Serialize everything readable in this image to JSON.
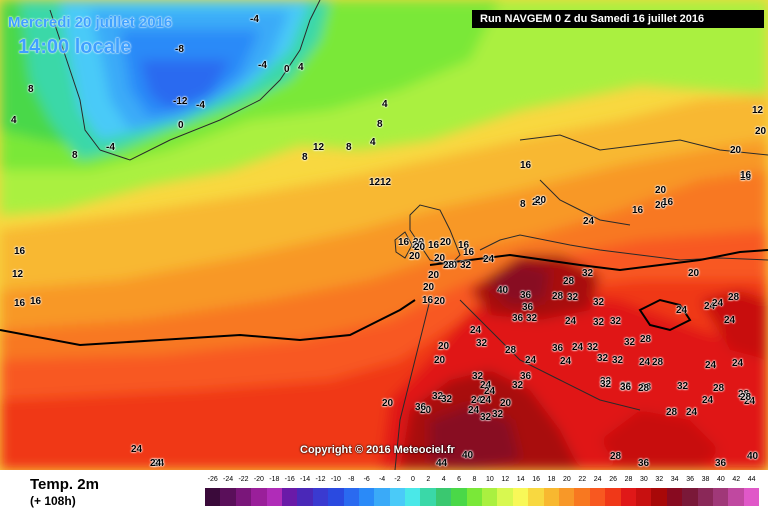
{
  "header": {
    "date_label": "Mercredi 20 juillet 2016",
    "time_label": "14:00 locale",
    "run_label": "Run NAVGEM 0 Z du Samedi 16 juillet 2016"
  },
  "footer": {
    "variable": "Temp. 2m",
    "lead": "(+ 108h)",
    "copyright": "Copyright © 2016 Meteociel.fr"
  },
  "legend": {
    "ticks": [
      "-26",
      "-24",
      "-22",
      "-20",
      "-18",
      "-16",
      "-14",
      "-12",
      "-10",
      "-8",
      "-6",
      "-4",
      "-2",
      "0",
      "2",
      "4",
      "6",
      "8",
      "10",
      "12",
      "14",
      "16",
      "18",
      "20",
      "22",
      "24",
      "26",
      "28",
      "30",
      "32",
      "34",
      "36",
      "38",
      "40",
      "42",
      "44"
    ],
    "colors": [
      "#3a0a3a",
      "#5a0f5a",
      "#7a167a",
      "#9a1f9a",
      "#b02cb8",
      "#6a1aa8",
      "#4a28b8",
      "#3a3ad0",
      "#2a4ae0",
      "#2a6af0",
      "#2a8af8",
      "#3aaaf8",
      "#4acaf8",
      "#4ae8e8",
      "#3ad8a8",
      "#3ac870",
      "#4ad848",
      "#7ae838",
      "#aaf040",
      "#d8f850",
      "#f8f858",
      "#f8d840",
      "#f8b830",
      "#f89828",
      "#f87820",
      "#f85820",
      "#f03818",
      "#e01818",
      "#c81010",
      "#a80808",
      "#880a20",
      "#7a1838",
      "#8a2858",
      "#a03878",
      "#c048a0",
      "#e058c8"
    ]
  },
  "labels": [
    {
      "t": "-4",
      "cls": ""
    },
    {
      "t": "-8",
      "cls": ""
    },
    {
      "t": "-4",
      "cls": ""
    },
    {
      "t": "0",
      "cls": ""
    },
    {
      "t": "4",
      "cls": ""
    },
    {
      "t": "8",
      "cls": ""
    },
    {
      "t": "-12",
      "cls": ""
    },
    {
      "t": "-4",
      "cls": ""
    },
    {
      "t": "0",
      "cls": ""
    },
    {
      "t": "-4",
      "cls": ""
    },
    {
      "t": "8",
      "cls": ""
    },
    {
      "t": "4",
      "cls": ""
    },
    {
      "t": "4",
      "cls": ""
    },
    {
      "t": "8",
      "cls": ""
    },
    {
      "t": "4",
      "cls": ""
    },
    {
      "t": "8",
      "cls": ""
    },
    {
      "t": "12",
      "cls": ""
    },
    {
      "t": "8",
      "cls": ""
    },
    {
      "t": "12",
      "cls": ""
    },
    {
      "t": "12",
      "cls": ""
    },
    {
      "t": "16",
      "cls": ""
    },
    {
      "t": "20",
      "cls": ""
    },
    {
      "t": "20",
      "cls": ""
    },
    {
      "t": "20",
      "cls": ""
    },
    {
      "t": "16",
      "cls": ""
    },
    {
      "t": "20",
      "cls": ""
    },
    {
      "t": "24",
      "cls": ""
    },
    {
      "t": "20",
      "cls": ""
    },
    {
      "t": "16",
      "cls": ""
    },
    {
      "t": "16",
      "cls": ""
    },
    {
      "t": "20",
      "cls": ""
    },
    {
      "t": "20",
      "cls": ""
    },
    {
      "t": "16",
      "cls": ""
    },
    {
      "t": "20",
      "cls": ""
    },
    {
      "t": "16",
      "cls": ""
    },
    {
      "t": "24",
      "cls": ""
    },
    {
      "t": "16",
      "cls": ""
    },
    {
      "t": "12",
      "cls": ""
    },
    {
      "t": "16",
      "cls": ""
    },
    {
      "t": "20",
      "cls": ""
    },
    {
      "t": "28",
      "cls": ""
    },
    {
      "t": "32",
      "cls": ""
    },
    {
      "t": "16",
      "cls": ""
    },
    {
      "t": "20",
      "cls": ""
    },
    {
      "t": "24",
      "cls": ""
    },
    {
      "t": "40",
      "cls": ""
    },
    {
      "t": "36",
      "cls": ""
    },
    {
      "t": "28",
      "cls": ""
    },
    {
      "t": "32",
      "cls": ""
    },
    {
      "t": "20",
      "cls": ""
    },
    {
      "t": "36",
      "cls": ""
    },
    {
      "t": "28",
      "cls": ""
    },
    {
      "t": "32",
      "cls": ""
    },
    {
      "t": "32",
      "cls": ""
    },
    {
      "t": "32",
      "cls": ""
    },
    {
      "t": "24",
      "cls": ""
    },
    {
      "t": "24",
      "cls": ""
    },
    {
      "t": "24",
      "cls": ""
    },
    {
      "t": "28",
      "cls": ""
    },
    {
      "t": "24",
      "cls": ""
    },
    {
      "t": "36",
      "cls": ""
    },
    {
      "t": "32",
      "cls": ""
    },
    {
      "t": "24",
      "cls": ""
    },
    {
      "t": "32",
      "cls": ""
    },
    {
      "t": "32",
      "cls": ""
    },
    {
      "t": "32",
      "cls": ""
    },
    {
      "t": "28",
      "cls": ""
    },
    {
      "t": "24",
      "cls": ""
    },
    {
      "t": "28",
      "cls": ""
    },
    {
      "t": "36",
      "cls": ""
    },
    {
      "t": "24",
      "cls": ""
    },
    {
      "t": "32",
      "cls": ""
    },
    {
      "t": "20",
      "cls": ""
    },
    {
      "t": "32",
      "cls": ""
    },
    {
      "t": "24",
      "cls": ""
    },
    {
      "t": "32",
      "cls": ""
    },
    {
      "t": "24",
      "cls": ""
    },
    {
      "t": "20",
      "cls": ""
    },
    {
      "t": "20",
      "cls": ""
    },
    {
      "t": "28",
      "cls": ""
    },
    {
      "t": "24",
      "cls": ""
    },
    {
      "t": "36",
      "cls": ""
    },
    {
      "t": "32",
      "cls": ""
    },
    {
      "t": "32",
      "cls": ""
    },
    {
      "t": "32",
      "cls": ""
    },
    {
      "t": "24",
      "cls": ""
    },
    {
      "t": "24",
      "cls": ""
    },
    {
      "t": "32",
      "cls": ""
    },
    {
      "t": "28",
      "cls": ""
    },
    {
      "t": "32",
      "cls": ""
    },
    {
      "t": "24",
      "cls": ""
    },
    {
      "t": "24",
      "cls": ""
    },
    {
      "t": "24",
      "cls": ""
    },
    {
      "t": "32",
      "cls": ""
    },
    {
      "t": "20",
      "cls": ""
    },
    {
      "t": "36",
      "cls": ""
    },
    {
      "t": "24",
      "cls": ""
    },
    {
      "t": "32",
      "cls": ""
    },
    {
      "t": "36",
      "cls": ""
    },
    {
      "t": "28",
      "cls": ""
    },
    {
      "t": "32",
      "cls": ""
    },
    {
      "t": "28",
      "cls": ""
    },
    {
      "t": "24",
      "cls": ""
    },
    {
      "t": "28",
      "cls": ""
    },
    {
      "t": "28",
      "cls": ""
    },
    {
      "t": "24",
      "cls": ""
    },
    {
      "t": "24",
      "cls": ""
    },
    {
      "t": "28",
      "cls": ""
    },
    {
      "t": "24",
      "cls": ""
    },
    {
      "t": "40",
      "cls": ""
    },
    {
      "t": "40",
      "cls": ""
    },
    {
      "t": "32",
      "cls": ""
    },
    {
      "t": "28",
      "cls": ""
    },
    {
      "t": "36",
      "cls": ""
    },
    {
      "t": "36",
      "cls": ""
    },
    {
      "t": "44",
      "cls": ""
    },
    {
      "t": "28",
      "cls": ""
    },
    {
      "t": "24",
      "cls": ""
    },
    {
      "t": "24",
      "cls": ""
    },
    {
      "t": "20",
      "cls": ""
    },
    {
      "t": "16",
      "cls": ""
    },
    {
      "t": "12",
      "cls": ""
    },
    {
      "t": "16",
      "cls": ""
    },
    {
      "t": "8",
      "cls": ""
    },
    {
      "t": "20",
      "cls": ""
    },
    {
      "t": "20",
      "cls": ""
    },
    {
      "t": "16",
      "cls": ""
    },
    {
      "t": "20",
      "cls": ""
    },
    {
      "t": "16",
      "cls": ""
    },
    {
      "t": "20",
      "cls": ""
    },
    {
      "t": "20",
      "cls": ""
    },
    {
      "t": "20",
      "cls": ""
    }
  ]
}
